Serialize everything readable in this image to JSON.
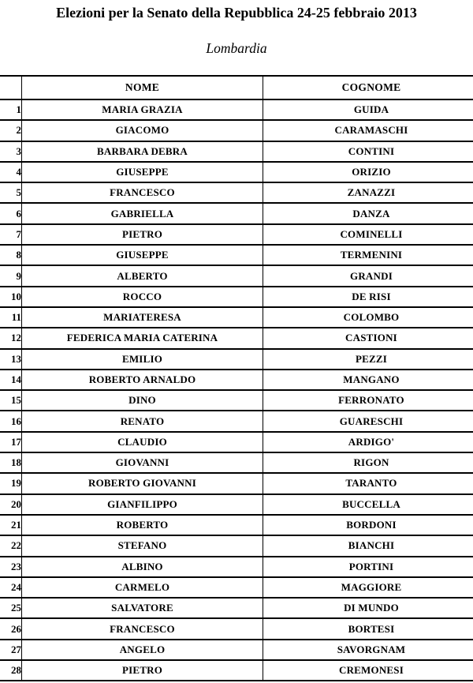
{
  "page": {
    "title": "Elezioni per la Senato della Repubblica 24-25 febbraio 2013",
    "subtitle": "Lombardia"
  },
  "table": {
    "columns": {
      "number": "",
      "nome": "NOME",
      "cognome": "COGNOME"
    },
    "rows": [
      {
        "n": "1",
        "nome": "MARIA GRAZIA",
        "cognome": "GUIDA"
      },
      {
        "n": "2",
        "nome": "GIACOMO",
        "cognome": "CARAMASCHI"
      },
      {
        "n": "3",
        "nome": "BARBARA DEBRA",
        "cognome": "CONTINI"
      },
      {
        "n": "4",
        "nome": "GIUSEPPE",
        "cognome": "ORIZIO"
      },
      {
        "n": "5",
        "nome": "FRANCESCO",
        "cognome": "ZANAZZI"
      },
      {
        "n": "6",
        "nome": "GABRIELLA",
        "cognome": "DANZA"
      },
      {
        "n": "7",
        "nome": "PIETRO",
        "cognome": "COMINELLI"
      },
      {
        "n": "8",
        "nome": "GIUSEPPE",
        "cognome": "TERMENINI"
      },
      {
        "n": "9",
        "nome": "ALBERTO",
        "cognome": "GRANDI"
      },
      {
        "n": "10",
        "nome": "ROCCO",
        "cognome": "DE RISI"
      },
      {
        "n": "11",
        "nome": "MARIATERESA",
        "cognome": "COLOMBO"
      },
      {
        "n": "12",
        "nome": "FEDERICA MARIA CATERINA",
        "cognome": "CASTIONI"
      },
      {
        "n": "13",
        "nome": "EMILIO",
        "cognome": "PEZZI"
      },
      {
        "n": "14",
        "nome": "ROBERTO ARNALDO",
        "cognome": "MANGANO"
      },
      {
        "n": "15",
        "nome": "DINO",
        "cognome": "FERRONATO"
      },
      {
        "n": "16",
        "nome": "RENATO",
        "cognome": "GUARESCHI"
      },
      {
        "n": "17",
        "nome": "CLAUDIO",
        "cognome": "ARDIGO'"
      },
      {
        "n": "18",
        "nome": "GIOVANNI",
        "cognome": "RIGON"
      },
      {
        "n": "19",
        "nome": "ROBERTO GIOVANNI",
        "cognome": "TARANTO"
      },
      {
        "n": "20",
        "nome": "GIANFILIPPO",
        "cognome": "BUCCELLA"
      },
      {
        "n": "21",
        "nome": "ROBERTO",
        "cognome": "BORDONI"
      },
      {
        "n": "22",
        "nome": "STEFANO",
        "cognome": "BIANCHI"
      },
      {
        "n": "23",
        "nome": "ALBINO",
        "cognome": "PORTINI"
      },
      {
        "n": "24",
        "nome": "CARMELO",
        "cognome": "MAGGIORE"
      },
      {
        "n": "25",
        "nome": "SALVATORE",
        "cognome": "DI MUNDO"
      },
      {
        "n": "26",
        "nome": "FRANCESCO",
        "cognome": "BORTESI"
      },
      {
        "n": "27",
        "nome": "ANGELO",
        "cognome": "SAVORGNAM"
      },
      {
        "n": "28",
        "nome": "PIETRO",
        "cognome": "CREMONESI"
      }
    ]
  },
  "colors": {
    "text": "#000000",
    "border": "#000000",
    "background": "#ffffff"
  }
}
